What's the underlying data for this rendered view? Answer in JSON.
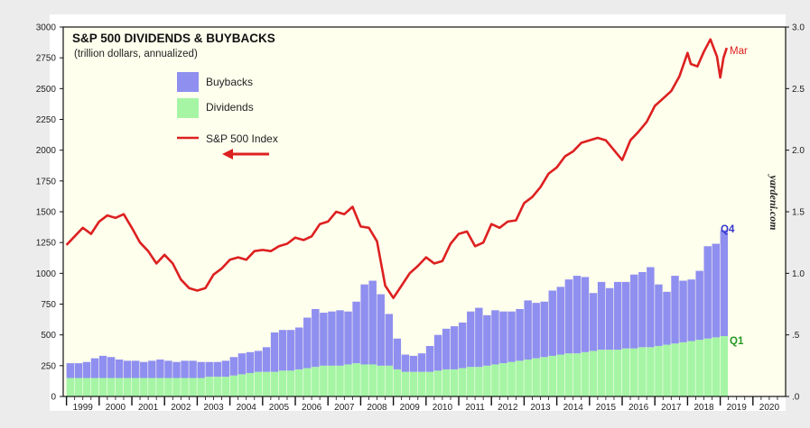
{
  "chart_data": {
    "type": "bar",
    "title": "S&P 500 DIVIDENDS & BUYBACKS",
    "subtitle": "(trillion dollars, annualized)",
    "watermark": "yardeni.com",
    "legend_placement": "top-left",
    "left_axis": {
      "range": [
        0,
        3000
      ],
      "ticks": [
        "0",
        "250",
        "500",
        "750",
        "1000",
        "1250",
        "1500",
        "1750",
        "2000",
        "2250",
        "2500",
        "2750",
        "3000"
      ]
    },
    "right_axis": {
      "range": [
        0,
        3.0
      ],
      "ticks": [
        ".0",
        ".5",
        "1.0",
        "1.5",
        "2.0",
        "2.5",
        "3.0"
      ]
    },
    "x_axis": {
      "range": [
        1998.9,
        2021.0
      ],
      "year_labels": [
        "1999",
        "2000",
        "2001",
        "2002",
        "2003",
        "2004",
        "2005",
        "2006",
        "2007",
        "2008",
        "2009",
        "2010",
        "2011",
        "2012",
        "2013",
        "2014",
        "2015",
        "2016",
        "2017",
        "2018",
        "2019",
        "2020"
      ]
    },
    "colors": {
      "buybacks": "#8f8ff0",
      "dividends": "#a5f5a5",
      "index": "#dd2020",
      "plot_bg": "#ffffee",
      "q4_label": "#3333cc",
      "q1_label": "#229922"
    },
    "legend": {
      "buybacks": "Buybacks",
      "dividends": "Dividends",
      "index": "S&P 500 Index"
    },
    "annotations": {
      "mar": "Mar",
      "q4": "Q4",
      "q1": "Q1"
    },
    "series": [
      {
        "name": "Dividends",
        "axis": "right",
        "values": [
          0.15,
          0.15,
          0.15,
          0.15,
          0.15,
          0.15,
          0.15,
          0.15,
          0.15,
          0.15,
          0.15,
          0.15,
          0.15,
          0.15,
          0.15,
          0.15,
          0.15,
          0.16,
          0.16,
          0.16,
          0.17,
          0.18,
          0.19,
          0.2,
          0.2,
          0.2,
          0.21,
          0.21,
          0.22,
          0.23,
          0.24,
          0.25,
          0.25,
          0.25,
          0.26,
          0.27,
          0.26,
          0.26,
          0.25,
          0.25,
          0.22,
          0.2,
          0.2,
          0.2,
          0.2,
          0.21,
          0.22,
          0.22,
          0.23,
          0.24,
          0.24,
          0.25,
          0.26,
          0.27,
          0.28,
          0.29,
          0.3,
          0.31,
          0.32,
          0.33,
          0.34,
          0.35,
          0.35,
          0.36,
          0.37,
          0.38,
          0.38,
          0.38,
          0.39,
          0.39,
          0.4,
          0.4,
          0.41,
          0.42,
          0.43,
          0.44,
          0.45,
          0.46,
          0.47,
          0.48,
          0.49
        ]
      },
      {
        "name": "Buybacks",
        "axis": "right",
        "values": [
          0.12,
          0.12,
          0.13,
          0.16,
          0.18,
          0.17,
          0.15,
          0.14,
          0.14,
          0.13,
          0.14,
          0.15,
          0.14,
          0.13,
          0.14,
          0.14,
          0.13,
          0.12,
          0.12,
          0.13,
          0.15,
          0.17,
          0.17,
          0.17,
          0.2,
          0.32,
          0.33,
          0.33,
          0.34,
          0.41,
          0.47,
          0.43,
          0.44,
          0.45,
          0.43,
          0.5,
          0.65,
          0.68,
          0.58,
          0.42,
          0.25,
          0.14,
          0.13,
          0.15,
          0.21,
          0.29,
          0.33,
          0.35,
          0.37,
          0.45,
          0.48,
          0.41,
          0.44,
          0.42,
          0.41,
          0.42,
          0.48,
          0.45,
          0.45,
          0.53,
          0.55,
          0.6,
          0.63,
          0.61,
          0.47,
          0.55,
          0.5,
          0.55,
          0.54,
          0.6,
          0.61,
          0.65,
          0.5,
          0.43,
          0.55,
          0.5,
          0.5,
          0.56,
          0.75,
          0.76,
          0.86
        ]
      },
      {
        "name": "S&P 500 Index",
        "axis": "left",
        "points": [
          [
            1999.0,
            1230
          ],
          [
            1999.25,
            1300
          ],
          [
            1999.5,
            1370
          ],
          [
            1999.75,
            1320
          ],
          [
            2000.0,
            1420
          ],
          [
            2000.25,
            1470
          ],
          [
            2000.5,
            1450
          ],
          [
            2000.75,
            1480
          ],
          [
            2001.0,
            1370
          ],
          [
            2001.25,
            1250
          ],
          [
            2001.5,
            1180
          ],
          [
            2001.75,
            1080
          ],
          [
            2002.0,
            1150
          ],
          [
            2002.25,
            1080
          ],
          [
            2002.5,
            950
          ],
          [
            2002.75,
            880
          ],
          [
            2003.0,
            860
          ],
          [
            2003.25,
            880
          ],
          [
            2003.5,
            990
          ],
          [
            2003.75,
            1040
          ],
          [
            2004.0,
            1110
          ],
          [
            2004.25,
            1130
          ],
          [
            2004.5,
            1110
          ],
          [
            2004.75,
            1180
          ],
          [
            2005.0,
            1190
          ],
          [
            2005.25,
            1180
          ],
          [
            2005.5,
            1220
          ],
          [
            2005.75,
            1240
          ],
          [
            2006.0,
            1290
          ],
          [
            2006.25,
            1270
          ],
          [
            2006.5,
            1300
          ],
          [
            2006.75,
            1400
          ],
          [
            2007.0,
            1420
          ],
          [
            2007.25,
            1500
          ],
          [
            2007.5,
            1480
          ],
          [
            2007.75,
            1540
          ],
          [
            2008.0,
            1380
          ],
          [
            2008.25,
            1370
          ],
          [
            2008.5,
            1260
          ],
          [
            2008.75,
            900
          ],
          [
            2009.0,
            800
          ],
          [
            2009.25,
            900
          ],
          [
            2009.5,
            1000
          ],
          [
            2009.75,
            1060
          ],
          [
            2010.0,
            1130
          ],
          [
            2010.25,
            1080
          ],
          [
            2010.5,
            1100
          ],
          [
            2010.75,
            1240
          ],
          [
            2011.0,
            1320
          ],
          [
            2011.25,
            1340
          ],
          [
            2011.5,
            1220
          ],
          [
            2011.75,
            1250
          ],
          [
            2012.0,
            1400
          ],
          [
            2012.25,
            1370
          ],
          [
            2012.5,
            1420
          ],
          [
            2012.75,
            1430
          ],
          [
            2013.0,
            1570
          ],
          [
            2013.25,
            1620
          ],
          [
            2013.5,
            1700
          ],
          [
            2013.75,
            1810
          ],
          [
            2014.0,
            1860
          ],
          [
            2014.25,
            1950
          ],
          [
            2014.5,
            1990
          ],
          [
            2014.75,
            2060
          ],
          [
            2015.0,
            2080
          ],
          [
            2015.25,
            2100
          ],
          [
            2015.5,
            2080
          ],
          [
            2015.75,
            2000
          ],
          [
            2016.0,
            1920
          ],
          [
            2016.25,
            2080
          ],
          [
            2016.5,
            2150
          ],
          [
            2016.75,
            2230
          ],
          [
            2017.0,
            2360
          ],
          [
            2017.25,
            2420
          ],
          [
            2017.5,
            2480
          ],
          [
            2017.75,
            2600
          ],
          [
            2018.0,
            2790
          ],
          [
            2018.1,
            2700
          ],
          [
            2018.3,
            2680
          ],
          [
            2018.5,
            2800
          ],
          [
            2018.7,
            2900
          ],
          [
            2018.9,
            2760
          ],
          [
            2019.0,
            2590
          ],
          [
            2019.1,
            2750
          ],
          [
            2019.2,
            2830
          ]
        ]
      }
    ]
  }
}
